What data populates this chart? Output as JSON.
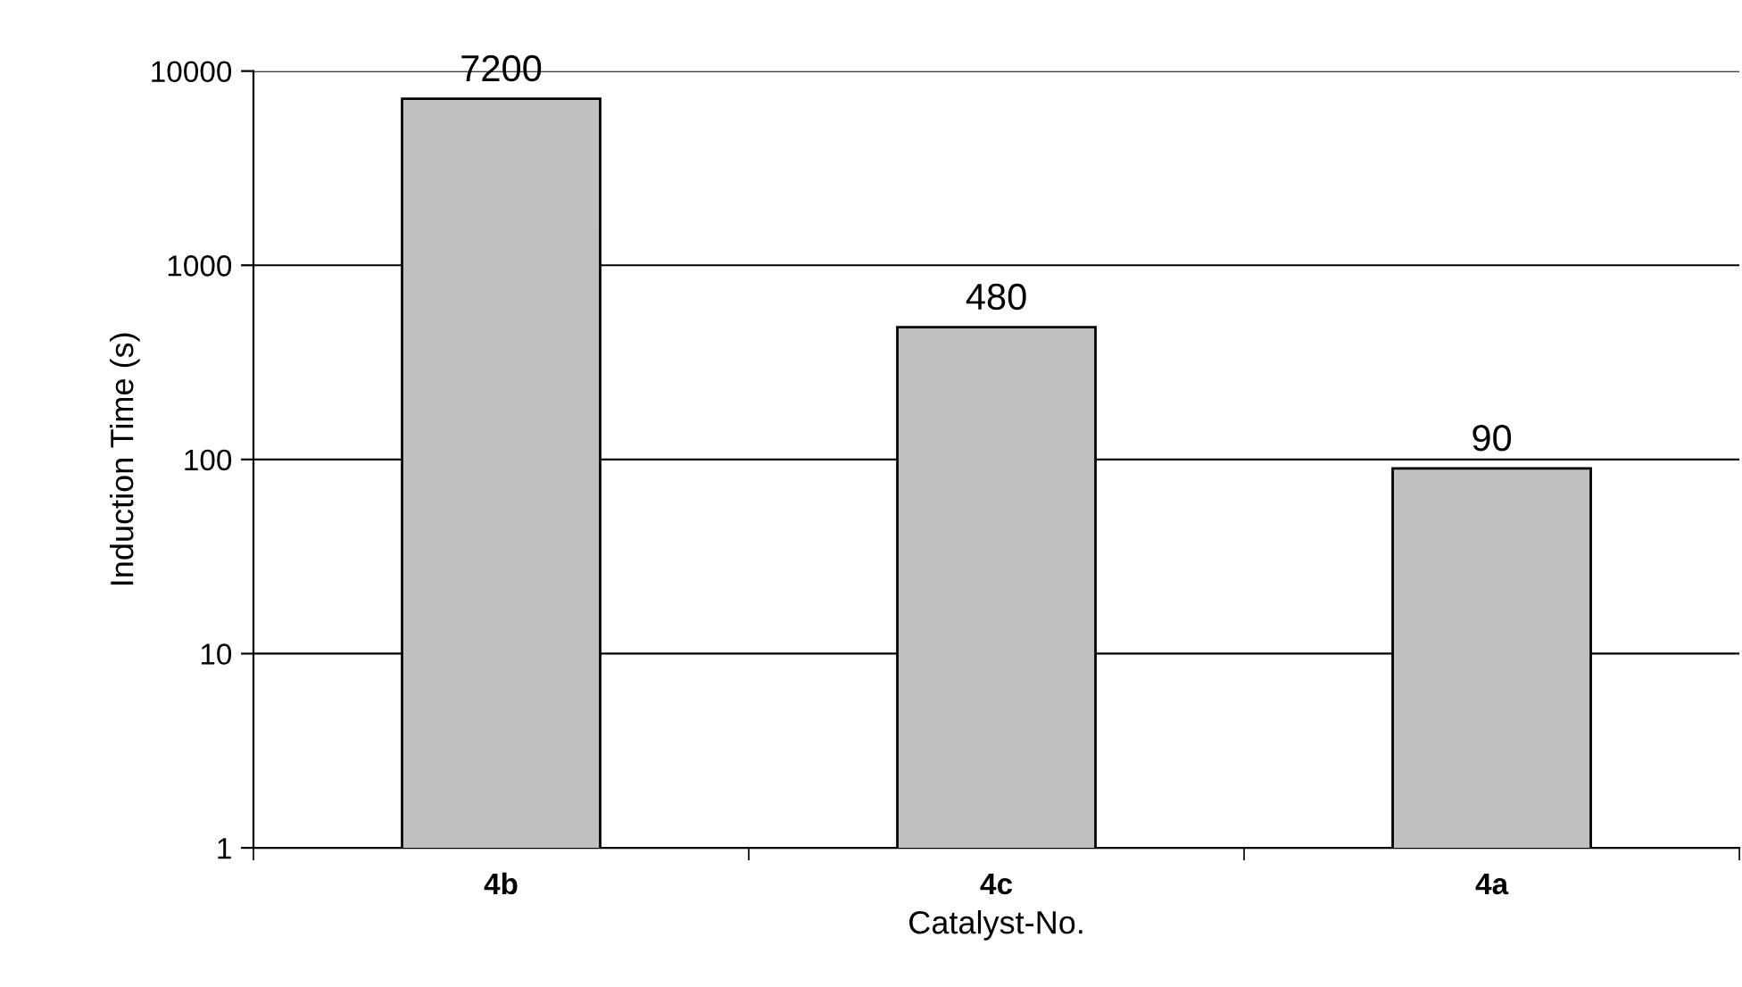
{
  "chart_data": {
    "type": "bar",
    "xlabel": "Catalyst-No.",
    "ylabel": "Induction Time (s)",
    "categories": [
      "4b",
      "4c",
      "4a"
    ],
    "values": [
      7200,
      480,
      90
    ],
    "color": "#c0c0c0",
    "log": true,
    "ylim": [
      1,
      10000
    ],
    "yticks": [
      1,
      10,
      100,
      1000,
      10000
    ],
    "grid": "y",
    "data_labels": true
  }
}
